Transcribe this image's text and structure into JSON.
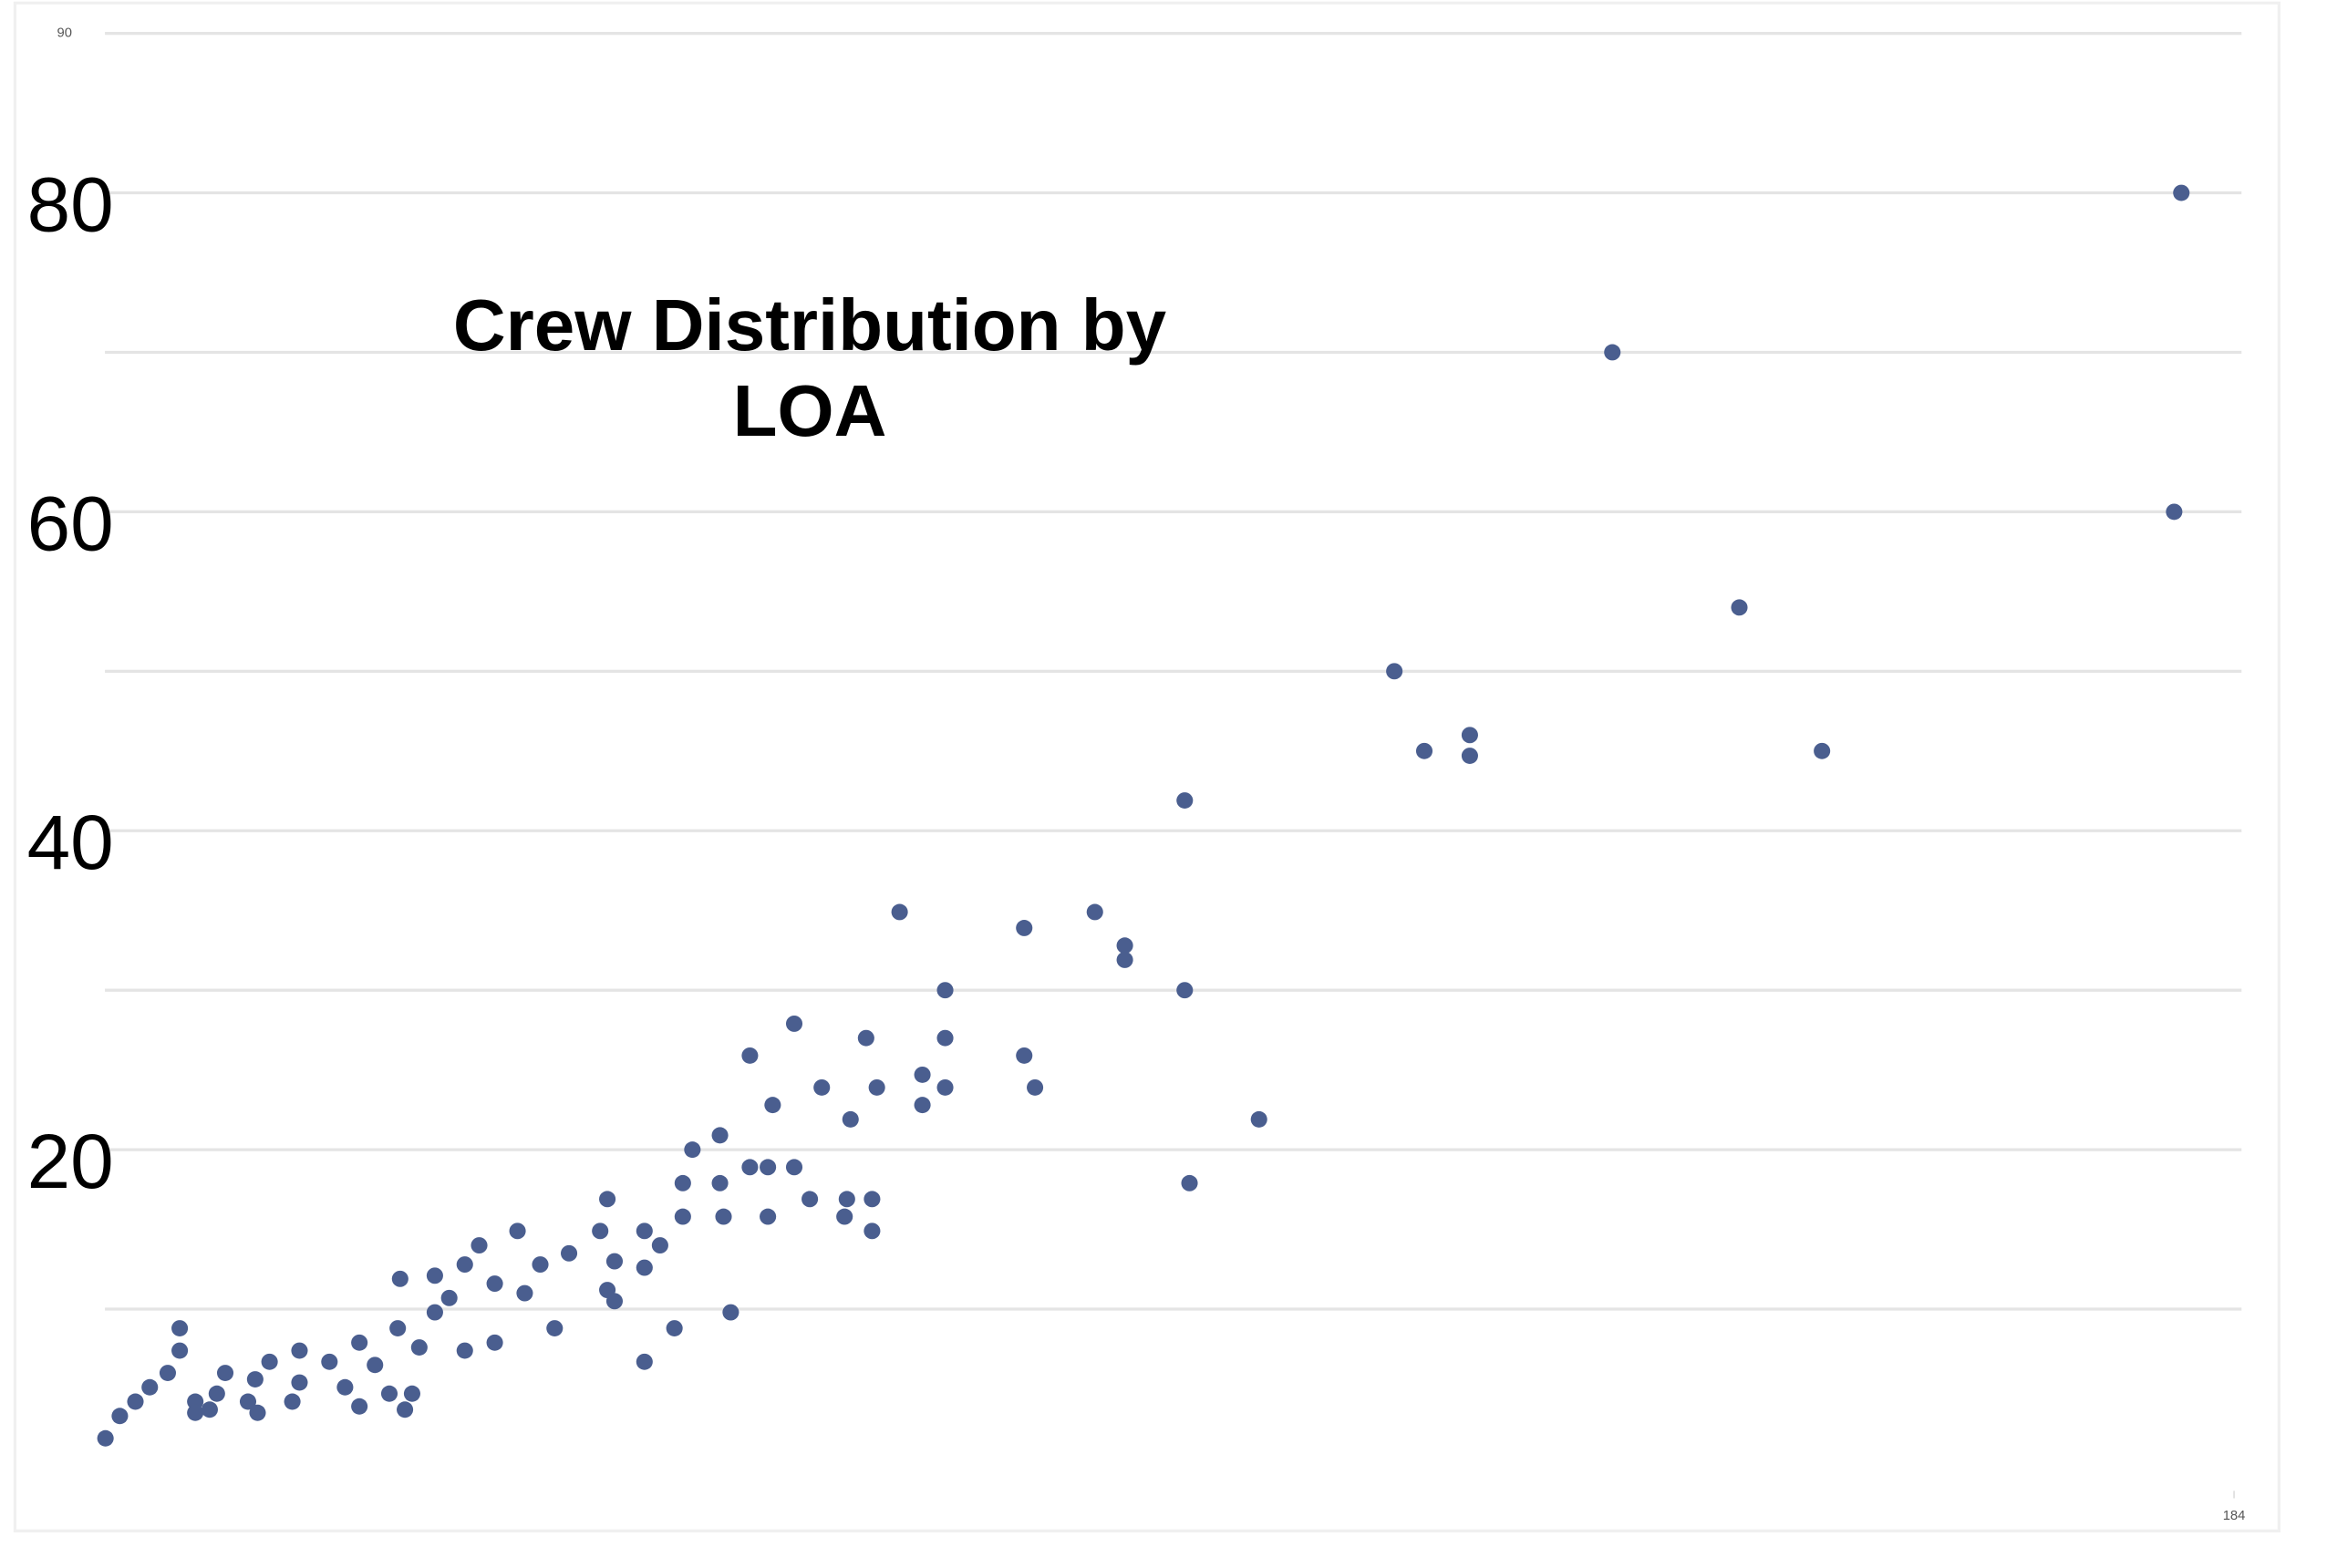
{
  "chart_data": {
    "type": "scatter",
    "title": "Crew Distribution by LOA",
    "xlim": [
      0,
      184
    ],
    "xticks": [
      184
    ],
    "ylim": [
      0,
      90
    ],
    "yticks": [
      20,
      40,
      60,
      80,
      90
    ],
    "minor_yticks": [
      10,
      30,
      50,
      70
    ],
    "grid": true,
    "color": "#4a5e8f",
    "x": [
      179.6,
      179,
      132.1,
      142.7,
      113.9,
      116.4,
      120.2,
      120.2,
      149.6,
      96.4,
      96.4,
      102.6,
      96.8,
      72.6,
      83,
      88.9,
      91.4,
      91.4,
      76.4,
      63.8,
      69.8,
      60.1,
      83,
      76.4,
      83.9,
      66.1,
      70.7,
      74.5,
      76.4,
      74.5,
      62,
      68.5,
      57.6,
      55.3,
      60.1,
      61.6,
      63.8,
      57.6,
      54.5,
      65.1,
      68.2,
      70.3,
      48.2,
      54.5,
      57.9,
      61.6,
      68,
      70.3,
      51.3,
      40.7,
      47.6,
      52.6,
      37.5,
      45,
      48.8,
      42.6,
      36.3,
      51.3,
      33.8,
      38.8,
      30.9,
      48.2,
      41.3,
      48.8,
      35,
      33.8,
      58.5,
      43.8,
      53.8,
      38.8,
      51.3,
      30.7,
      27.5,
      32.5,
      36.3,
      22.5,
      20,
      25,
      28.8,
      16.3,
      18.8,
      22.5,
      26.3,
      30,
      31.9,
      15.6,
      18.2,
      21.9,
      13.8,
      27.5,
      15,
      31.3,
      19,
      13.8,
      12.5,
      12.5,
      11.5,
      10,
      8.8,
      7.5,
      6.3
    ],
    "values": [
      80,
      60,
      70,
      54,
      50,
      45,
      46,
      44.7,
      45,
      41.9,
      30,
      21.9,
      17.9,
      34.9,
      33.9,
      34.9,
      32.8,
      31.9,
      30,
      27.9,
      27,
      25.9,
      25.9,
      27,
      23.9,
      23.9,
      23.9,
      24.7,
      23.9,
      22.8,
      22.8,
      21.9,
      20.9,
      20,
      18.9,
      18.9,
      18.9,
      17.9,
      17.9,
      16.9,
      16.9,
      16.9,
      16.9,
      15.8,
      15.8,
      15.8,
      15.8,
      14.9,
      14.9,
      14.9,
      14.9,
      14,
      14,
      13.5,
      13,
      12.8,
      12.8,
      12.6,
      12.1,
      11.6,
      11.9,
      11.2,
      11,
      10.5,
      10.7,
      9.8,
      9.8,
      8.8,
      8.8,
      7.9,
      6.7,
      8.8,
      7.9,
      7.6,
      7.4,
      7.4,
      6.7,
      6.7,
      6.5,
      6,
      5.6,
      5.4,
      5.1,
      4.7,
      4.7,
      4.7,
      4.2,
      4.2,
      4.2,
      3.9,
      3.7,
      3.7,
      3.5,
      3.5,
      8.8,
      7.4,
      6,
      5.1,
      4.2,
      3.3,
      1.9
    ]
  }
}
